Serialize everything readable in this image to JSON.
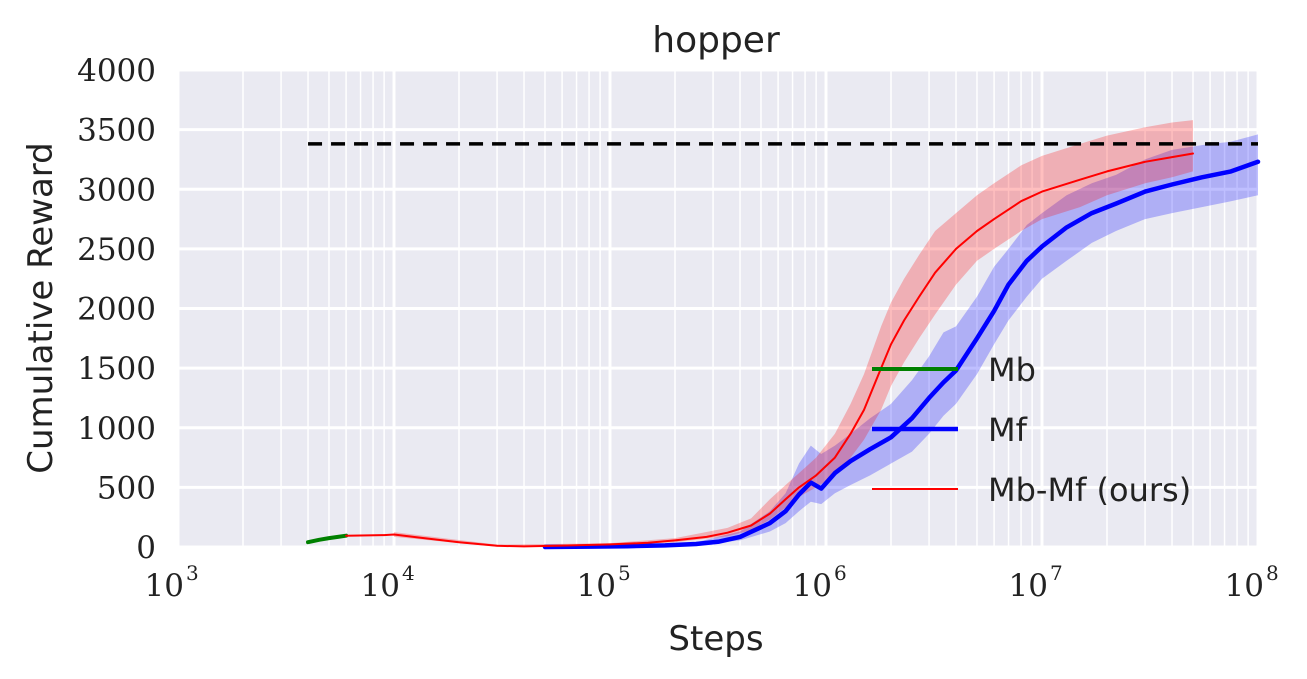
{
  "chart_data": {
    "type": "line",
    "title": "hopper",
    "xlabel": "Steps",
    "ylabel": "Cumulative Reward",
    "xscale": "log",
    "xlim": [
      1000,
      100000000
    ],
    "ylim": [
      0,
      4000
    ],
    "grid": true,
    "background": "#eaeaf2",
    "x_ticks": [
      {
        "base": "10",
        "exp": "3",
        "value": 1000
      },
      {
        "base": "10",
        "exp": "4",
        "value": 10000
      },
      {
        "base": "10",
        "exp": "5",
        "value": 100000
      },
      {
        "base": "10",
        "exp": "6",
        "value": 1000000
      },
      {
        "base": "10",
        "exp": "7",
        "value": 10000000
      },
      {
        "base": "10",
        "exp": "8",
        "value": 100000000
      }
    ],
    "y_ticks": [
      {
        "label": "0",
        "value": 0
      },
      {
        "label": "500",
        "value": 500
      },
      {
        "label": "1000",
        "value": 1000
      },
      {
        "label": "1500",
        "value": 1500
      },
      {
        "label": "2000",
        "value": 2000
      },
      {
        "label": "2500",
        "value": 2500
      },
      {
        "label": "3000",
        "value": 3000
      },
      {
        "label": "3500",
        "value": 3500
      },
      {
        "label": "4000",
        "value": 4000
      }
    ],
    "reference_line": {
      "y": 3380,
      "x_range": [
        4000,
        100000000
      ],
      "style": "dashed",
      "color": "#000000"
    },
    "legend_position": "lower-right",
    "series": [
      {
        "name": "Mb",
        "color": "#008000",
        "points": [
          [
            4000,
            40
          ],
          [
            4500,
            60
          ],
          [
            5000,
            75
          ],
          [
            5500,
            85
          ],
          [
            6000,
            95
          ]
        ]
      },
      {
        "name": "Mf",
        "color": "#0000ff",
        "band_color": "#0000ff",
        "points": [
          [
            50000,
            0
          ],
          [
            80000,
            3
          ],
          [
            120000,
            7
          ],
          [
            180000,
            13
          ],
          [
            250000,
            25
          ],
          [
            320000,
            45
          ],
          [
            400000,
            85
          ],
          [
            480000,
            150
          ],
          [
            550000,
            200
          ],
          [
            650000,
            300
          ],
          [
            750000,
            440
          ],
          [
            850000,
            540
          ],
          [
            950000,
            490
          ],
          [
            1100000,
            620
          ],
          [
            1300000,
            720
          ],
          [
            1600000,
            820
          ],
          [
            2000000,
            920
          ],
          [
            2500000,
            1080
          ],
          [
            3000000,
            1250
          ],
          [
            3500000,
            1380
          ],
          [
            4000000,
            1480
          ],
          [
            5000000,
            1750
          ],
          [
            6000000,
            1980
          ],
          [
            7000000,
            2200
          ],
          [
            8500000,
            2400
          ],
          [
            10000000,
            2520
          ],
          [
            13000000,
            2680
          ],
          [
            17000000,
            2800
          ],
          [
            22000000,
            2880
          ],
          [
            30000000,
            2980
          ],
          [
            40000000,
            3040
          ],
          [
            55000000,
            3100
          ],
          [
            75000000,
            3150
          ],
          [
            100000000,
            3230
          ]
        ],
        "band": [
          [
            50000,
            0,
            5
          ],
          [
            120000,
            2,
            14
          ],
          [
            250000,
            15,
            40
          ],
          [
            400000,
            55,
            130
          ],
          [
            550000,
            130,
            300
          ],
          [
            650000,
            200,
            450
          ],
          [
            750000,
            300,
            700
          ],
          [
            850000,
            380,
            850
          ],
          [
            950000,
            360,
            780
          ],
          [
            1100000,
            450,
            850
          ],
          [
            1300000,
            520,
            950
          ],
          [
            1600000,
            600,
            1080
          ],
          [
            2000000,
            700,
            1200
          ],
          [
            2500000,
            800,
            1400
          ],
          [
            3000000,
            950,
            1600
          ],
          [
            3500000,
            1100,
            1800
          ],
          [
            4000000,
            1200,
            1850
          ],
          [
            5000000,
            1450,
            2100
          ],
          [
            6000000,
            1700,
            2350
          ],
          [
            7000000,
            1900,
            2500
          ],
          [
            8500000,
            2100,
            2700
          ],
          [
            10000000,
            2250,
            2800
          ],
          [
            13000000,
            2400,
            2950
          ],
          [
            17000000,
            2550,
            3050
          ],
          [
            22000000,
            2650,
            3120
          ],
          [
            30000000,
            2750,
            3250
          ],
          [
            40000000,
            2800,
            3330
          ],
          [
            55000000,
            2850,
            3370
          ],
          [
            75000000,
            2900,
            3400
          ],
          [
            100000000,
            2950,
            3460
          ]
        ]
      },
      {
        "name": "Mb-Mf (ours)",
        "color": "#ff0000",
        "band_color": "#ff0000",
        "points": [
          [
            6000,
            95
          ],
          [
            9000,
            100
          ],
          [
            10000,
            105
          ],
          [
            13000,
            80
          ],
          [
            20000,
            40
          ],
          [
            30000,
            10
          ],
          [
            40000,
            5
          ],
          [
            60000,
            12
          ],
          [
            100000,
            22
          ],
          [
            150000,
            35
          ],
          [
            200000,
            55
          ],
          [
            280000,
            85
          ],
          [
            350000,
            120
          ],
          [
            450000,
            180
          ],
          [
            550000,
            280
          ],
          [
            650000,
            400
          ],
          [
            750000,
            500
          ],
          [
            900000,
            600
          ],
          [
            1100000,
            750
          ],
          [
            1300000,
            950
          ],
          [
            1500000,
            1150
          ],
          [
            1800000,
            1500
          ],
          [
            2000000,
            1700
          ],
          [
            2300000,
            1900
          ],
          [
            2700000,
            2100
          ],
          [
            3200000,
            2300
          ],
          [
            4000000,
            2500
          ],
          [
            5000000,
            2650
          ],
          [
            6000000,
            2750
          ],
          [
            8000000,
            2900
          ],
          [
            10000000,
            2980
          ],
          [
            15000000,
            3080
          ],
          [
            20000000,
            3150
          ],
          [
            30000000,
            3230
          ],
          [
            40000000,
            3270
          ],
          [
            50000000,
            3300
          ]
        ],
        "band": [
          [
            10000,
            85,
            125
          ],
          [
            30000,
            2,
            20
          ],
          [
            100000,
            15,
            32
          ],
          [
            200000,
            40,
            75
          ],
          [
            350000,
            90,
            160
          ],
          [
            450000,
            140,
            240
          ],
          [
            550000,
            230,
            400
          ],
          [
            650000,
            330,
            520
          ],
          [
            750000,
            420,
            620
          ],
          [
            900000,
            500,
            750
          ],
          [
            1100000,
            600,
            950
          ],
          [
            1300000,
            750,
            1200
          ],
          [
            1500000,
            900,
            1450
          ],
          [
            1800000,
            1150,
            1850
          ],
          [
            2000000,
            1350,
            2050
          ],
          [
            2300000,
            1550,
            2250
          ],
          [
            2700000,
            1750,
            2450
          ],
          [
            3200000,
            1950,
            2650
          ],
          [
            4000000,
            2200,
            2800
          ],
          [
            5000000,
            2400,
            2950
          ],
          [
            6000000,
            2500,
            3050
          ],
          [
            8000000,
            2650,
            3200
          ],
          [
            10000000,
            2750,
            3280
          ],
          [
            15000000,
            2850,
            3380
          ],
          [
            20000000,
            2950,
            3450
          ],
          [
            30000000,
            3050,
            3520
          ],
          [
            40000000,
            3100,
            3560
          ],
          [
            50000000,
            3150,
            3580
          ]
        ]
      }
    ]
  }
}
